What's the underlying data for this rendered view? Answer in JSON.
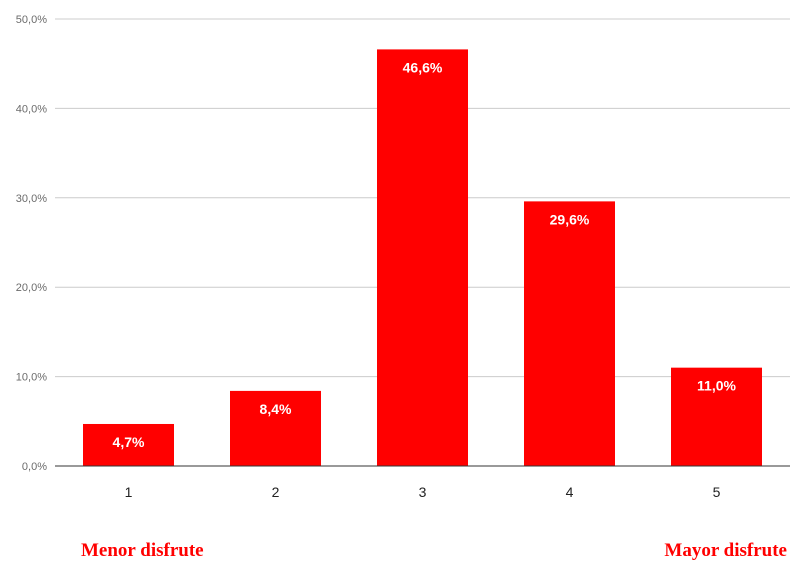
{
  "chart_data": {
    "type": "bar",
    "categories": [
      "1",
      "2",
      "3",
      "4",
      "5"
    ],
    "values": [
      4.7,
      8.4,
      46.6,
      29.6,
      11.0
    ],
    "data_labels": [
      "4,7%",
      "8,4%",
      "46,6%",
      "29,6%",
      "11,0%"
    ],
    "y_ticks": [
      "0,0%",
      "10,0%",
      "20,0%",
      "30,0%",
      "40,0%",
      "50,0%"
    ],
    "ylim": [
      0,
      50
    ],
    "grid": true,
    "title": "",
    "xlabel": "",
    "ylabel": "",
    "bar_color": "#ff0000",
    "grid_color": "#cccccc"
  },
  "annotations": {
    "left": "Menor disfrute",
    "right": "Mayor disfrute"
  }
}
